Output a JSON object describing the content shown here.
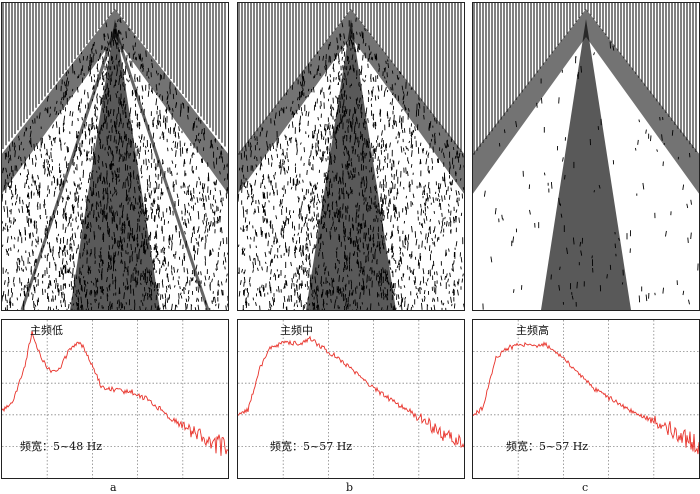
{
  "panels": [
    {
      "letter": "a",
      "freq_label": "主频低",
      "bandwidth": "频宽：5~48 Hz"
    },
    {
      "letter": "b",
      "freq_label": "主频中",
      "bandwidth": "频宽：5~57 Hz"
    },
    {
      "letter": "c",
      "freq_label": "主频高",
      "bandwidth": "频宽：5~57 Hz"
    }
  ],
  "colors": {
    "spectrum": "#e8322a",
    "grid": "#888888",
    "trace": "#000000"
  }
}
